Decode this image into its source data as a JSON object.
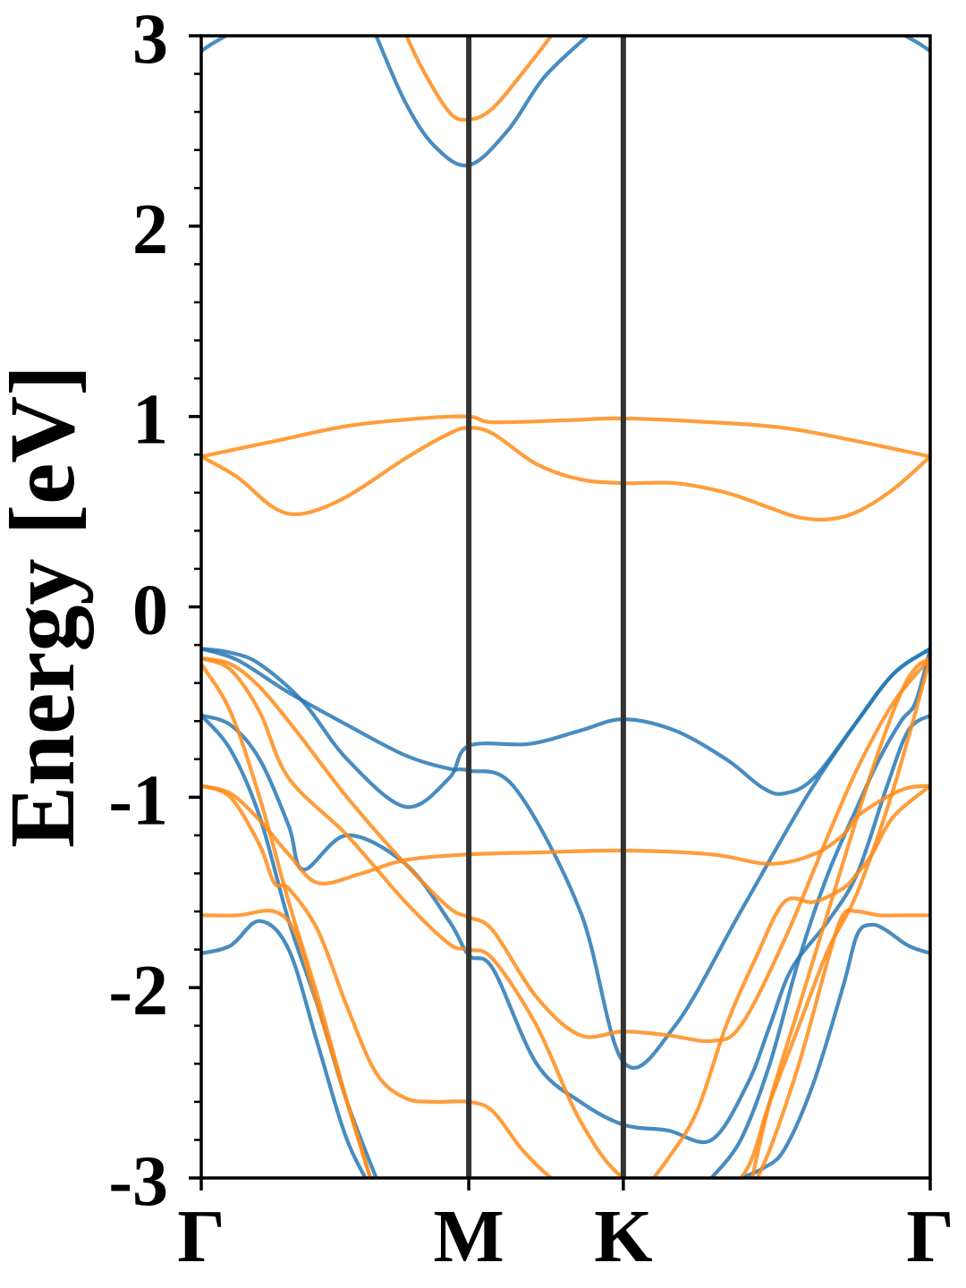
{
  "chart_data": {
    "type": "line",
    "title": "",
    "xlabel": "",
    "ylabel": "Energy [eV]",
    "ylim": [
      -3,
      3
    ],
    "yticks": [
      "3",
      "2",
      "1",
      "0",
      "-1",
      "-2",
      "-3"
    ],
    "ytick_values": [
      3,
      2,
      1,
      0,
      -1,
      -2,
      -3
    ],
    "k_path": [
      {
        "label": "Γ",
        "k": 0.0
      },
      {
        "label": "M",
        "k": 0.367
      },
      {
        "label": "K",
        "k": 0.579
      },
      {
        "label": "Γ",
        "k": 1.0
      }
    ],
    "grid": false,
    "legend": "none",
    "colors": {
      "blue": "#2878b5",
      "orange": "#ff8c1a",
      "divider": "#333333"
    },
    "series": [
      {
        "color": "#2878b5",
        "x": [
          0,
          0.05,
          0.12,
          0.2,
          0.28,
          0.34,
          0.367,
          0.43,
          0.52,
          0.579,
          0.65,
          0.74,
          0.83,
          0.9,
          0.95,
          1.0
        ],
        "y": [
          -0.22,
          -0.28,
          -0.45,
          -0.62,
          -0.78,
          -0.85,
          -0.86,
          -0.95,
          -1.6,
          -2.39,
          -2.2,
          -1.6,
          -1.0,
          -0.6,
          -0.35,
          -0.22
        ]
      },
      {
        "color": "#2878b5",
        "x": [
          0,
          0.04,
          0.08,
          0.14,
          0.2,
          0.28,
          0.34,
          0.367,
          0.45,
          0.52,
          0.579,
          0.65,
          0.72,
          0.77,
          0.8,
          0.84,
          0.9,
          0.95,
          1.0
        ],
        "y": [
          -0.22,
          -0.24,
          -0.3,
          -0.5,
          -0.8,
          -1.05,
          -0.9,
          -0.73,
          -0.72,
          -0.65,
          -0.59,
          -0.65,
          -0.8,
          -0.95,
          -0.98,
          -0.9,
          -0.6,
          -0.35,
          -0.22
        ]
      },
      {
        "color": "#2878b5",
        "x": [
          0,
          0.04,
          0.08,
          0.12,
          0.14,
          0.2,
          0.28,
          0.34,
          0.367,
          0.4,
          0.46,
          0.52,
          0.579,
          0.64,
          0.7,
          0.75,
          0.78,
          0.81,
          0.86,
          0.9,
          0.94,
          0.97,
          1.0
        ],
        "y": [
          -0.57,
          -0.62,
          -0.8,
          -1.15,
          -1.38,
          -1.2,
          -1.35,
          -1.65,
          -1.83,
          -1.9,
          -2.4,
          -2.6,
          -2.72,
          -2.75,
          -2.8,
          -2.5,
          -2.2,
          -1.9,
          -1.65,
          -1.4,
          -0.95,
          -0.65,
          -0.57
        ]
      },
      {
        "color": "#2878b5",
        "x": [
          0,
          0.04,
          0.08,
          0.12,
          0.16,
          0.2,
          0.24
        ],
        "y": [
          -0.57,
          -0.75,
          -1.1,
          -1.65,
          -2.1,
          -2.6,
          -3.0
        ]
      },
      {
        "color": "#2878b5",
        "x": [
          0,
          0.04,
          0.08,
          0.12,
          0.16,
          0.2,
          0.24
        ],
        "y": [
          -1.82,
          -1.78,
          -1.65,
          -1.8,
          -2.3,
          -2.8,
          -3.1
        ]
      },
      {
        "color": "#2878b5",
        "x": [
          0.74,
          0.77,
          0.8,
          0.84,
          0.88,
          0.9,
          0.92,
          0.94,
          0.97,
          1.0
        ],
        "y": [
          -3.0,
          -2.95,
          -2.85,
          -2.5,
          -2.0,
          -1.72,
          -1.67,
          -1.7,
          -1.78,
          -1.82
        ]
      },
      {
        "color": "#2878b5",
        "x": [
          0.7,
          0.74,
          0.78,
          0.82,
          0.86,
          0.9,
          0.93,
          0.96,
          0.98,
          1.0
        ],
        "y": [
          -3.0,
          -2.8,
          -2.4,
          -1.85,
          -1.4,
          -1.05,
          -0.8,
          -0.6,
          -0.5,
          -0.22
        ]
      },
      {
        "color": "#2878b5",
        "x": [
          0,
          0.02,
          0.06,
          0.1
        ],
        "y": [
          2.92,
          2.97,
          3.05,
          3.1
        ]
      },
      {
        "color": "#2878b5",
        "x": [
          0.9,
          0.94,
          0.98,
          1.0
        ],
        "y": [
          3.1,
          3.05,
          2.97,
          2.92
        ]
      },
      {
        "color": "#2878b5",
        "x": [
          0.24,
          0.28,
          0.32,
          0.367,
          0.42,
          0.47,
          0.53
        ],
        "y": [
          3.0,
          2.65,
          2.42,
          2.32,
          2.5,
          2.78,
          3.0
        ]
      },
      {
        "color": "#ff8c1a",
        "x": [
          0,
          0.1,
          0.2,
          0.3,
          0.367,
          0.4,
          0.5,
          0.579,
          0.7,
          0.8,
          0.9,
          1.0
        ],
        "y": [
          0.79,
          0.87,
          0.95,
          0.99,
          1.0,
          0.97,
          0.98,
          0.99,
          0.97,
          0.94,
          0.87,
          0.79
        ]
      },
      {
        "color": "#ff8c1a",
        "x": [
          0,
          0.05,
          0.1,
          0.14,
          0.2,
          0.28,
          0.34,
          0.367,
          0.4,
          0.46,
          0.52,
          0.579,
          0.65,
          0.72,
          0.78,
          0.82,
          0.86,
          0.9,
          0.95,
          1.0
        ],
        "y": [
          0.79,
          0.68,
          0.52,
          0.49,
          0.58,
          0.78,
          0.91,
          0.94,
          0.91,
          0.75,
          0.67,
          0.65,
          0.65,
          0.6,
          0.52,
          0.47,
          0.46,
          0.5,
          0.62,
          0.79
        ]
      },
      {
        "color": "#ff8c1a",
        "x": [
          0,
          0.04,
          0.08,
          0.13,
          0.2,
          0.28,
          0.34,
          0.367,
          0.4,
          0.46,
          0.52,
          0.579,
          0.64,
          0.7,
          0.74,
          0.8,
          0.86,
          0.9,
          0.95,
          1.0
        ],
        "y": [
          -0.27,
          -0.3,
          -0.42,
          -0.65,
          -1.0,
          -1.35,
          -1.58,
          -1.63,
          -1.7,
          -2.05,
          -2.25,
          -2.23,
          -2.25,
          -2.28,
          -2.2,
          -1.75,
          -1.2,
          -0.85,
          -0.5,
          -0.27
        ]
      },
      {
        "color": "#ff8c1a",
        "x": [
          0,
          0.04,
          0.08,
          0.12,
          0.2,
          0.28,
          0.34,
          0.367,
          0.4,
          0.46,
          0.52,
          0.579,
          0.66,
          0.74,
          0.78,
          0.82,
          0.86,
          0.9,
          0.95,
          1.0
        ],
        "y": [
          -0.27,
          -0.33,
          -0.55,
          -0.9,
          -1.2,
          -1.55,
          -1.77,
          -1.8,
          -1.85,
          -2.2,
          -2.7,
          -3.0,
          -3.1,
          -3.0,
          -2.6,
          -2.2,
          -1.8,
          -1.5,
          -0.95,
          -0.27
        ]
      },
      {
        "color": "#ff8c1a",
        "x": [
          0,
          0.04,
          0.08,
          0.12,
          0.16,
          0.22,
          0.28,
          0.367,
          0.46,
          0.579,
          0.7,
          0.78,
          0.84,
          0.88,
          0.9,
          0.94,
          0.97,
          1.0
        ],
        "y": [
          -0.94,
          -0.98,
          -1.12,
          -1.3,
          -1.45,
          -1.4,
          -1.33,
          -1.3,
          -1.29,
          -1.28,
          -1.3,
          -1.35,
          -1.3,
          -1.2,
          -1.1,
          -1.0,
          -0.95,
          -0.94
        ]
      },
      {
        "color": "#ff8c1a",
        "x": [
          0,
          0.04,
          0.08,
          0.1,
          0.12,
          0.16,
          0.2,
          0.24,
          0.28,
          0.32,
          0.367,
          0.4,
          0.44,
          0.48,
          0.52
        ],
        "y": [
          -0.94,
          -1.0,
          -1.25,
          -1.45,
          -1.48,
          -1.7,
          -2.1,
          -2.45,
          -2.58,
          -2.6,
          -2.6,
          -2.65,
          -2.85,
          -3.0,
          -3.1
        ]
      },
      {
        "color": "#ff8c1a",
        "x": [
          0,
          0.05,
          0.1,
          0.13,
          0.16,
          0.2,
          0.24
        ],
        "y": [
          -1.62,
          -1.62,
          -1.6,
          -1.72,
          -2.1,
          -2.6,
          -3.1
        ]
      },
      {
        "color": "#ff8c1a",
        "x": [
          0,
          0.04,
          0.08,
          0.12,
          0.16,
          0.2,
          0.24
        ],
        "y": [
          -0.3,
          -0.55,
          -1.0,
          -1.55,
          -2.05,
          -2.6,
          -3.1
        ]
      },
      {
        "color": "#ff8c1a",
        "x": [
          0.6,
          0.64,
          0.68,
          0.72,
          0.76,
          0.8,
          0.84,
          0.88,
          0.9,
          0.92,
          0.95,
          1.0
        ],
        "y": [
          -3.1,
          -2.9,
          -2.65,
          -2.2,
          -1.85,
          -1.55,
          -1.55,
          -1.48,
          -1.4,
          -1.3,
          -1.1,
          -0.94
        ]
      },
      {
        "color": "#ff8c1a",
        "x": [
          0.75,
          0.78,
          0.82,
          0.86,
          0.88,
          0.9,
          0.93,
          0.96,
          1.0
        ],
        "y": [
          -3.1,
          -2.85,
          -2.4,
          -1.85,
          -1.62,
          -1.6,
          -1.62,
          -1.62,
          -1.62
        ]
      },
      {
        "color": "#ff8c1a",
        "x": [
          0.75,
          0.78,
          0.82,
          0.86,
          0.9,
          0.93,
          0.96,
          0.98,
          1.0
        ],
        "y": [
          -3.1,
          -2.6,
          -2.1,
          -1.6,
          -1.1,
          -0.75,
          -0.45,
          -0.32,
          -0.27
        ]
      },
      {
        "color": "#ff8c1a",
        "x": [
          0.27,
          0.3,
          0.34,
          0.367,
          0.4,
          0.45,
          0.5
        ],
        "y": [
          3.1,
          2.85,
          2.6,
          2.56,
          2.62,
          2.85,
          3.1
        ]
      }
    ]
  }
}
